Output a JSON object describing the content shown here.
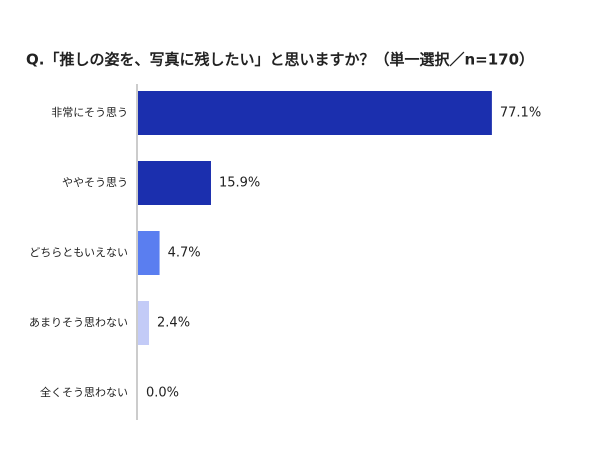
{
  "chart_data": {
    "type": "hbar",
    "title": "Q.「推しの姿を、写真に残したい」と思いますか？（単一選択／n=170）",
    "categories": [
      "非常にそう思う",
      "ややそう思う",
      "どちらともいえない",
      "あまりそう思わない",
      "全くそう思わない"
    ],
    "values": [
      77.1,
      15.9,
      4.7,
      2.4,
      0.0
    ],
    "value_labels": [
      "77.1%",
      "15.9%",
      "4.7%",
      "2.4%",
      "0.0%"
    ],
    "colors": [
      "#1b2fae",
      "#1b2fae",
      "#5a7ef0",
      "#c3cbf7",
      "#c3cbf7"
    ]
  }
}
